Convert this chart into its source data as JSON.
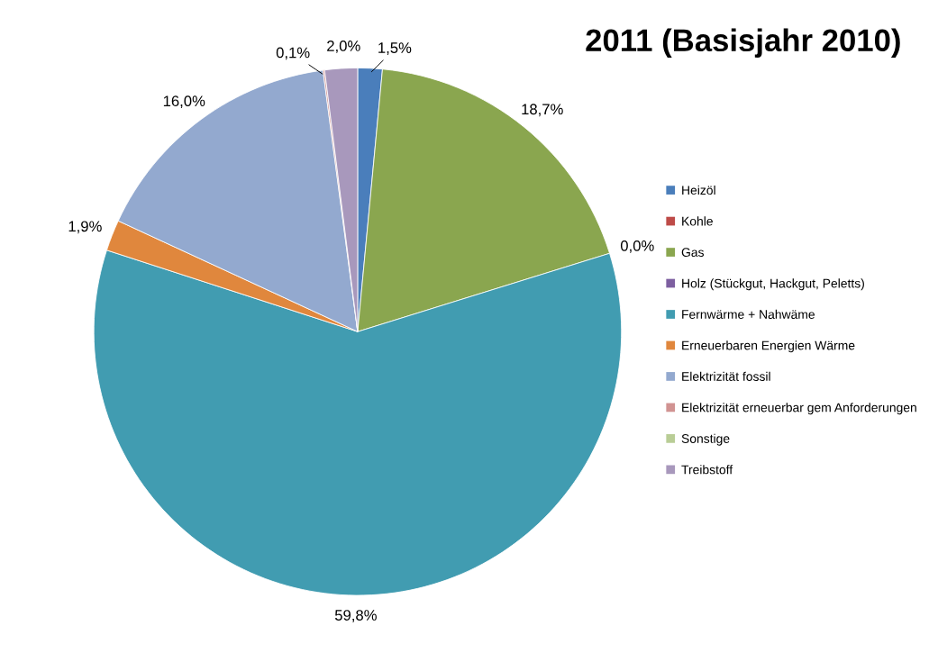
{
  "chart_data": {
    "type": "pie",
    "title": "2011 (Basisjahr 2010)",
    "categories": [
      "Heizöl",
      "Kohle",
      "Gas",
      "Holz (Stückgut, Hackgut, Peletts)",
      "Fernwärme + Nahwäme",
      "Erneuerbaren Energien Wärme",
      "Elektrizität fossil",
      "Elektrizität erneuerbar gem Anforderungen",
      "Sonstige",
      "Treibstoff"
    ],
    "values": [
      1.5,
      0.0,
      18.7,
      0.0,
      59.8,
      1.9,
      16.0,
      0.1,
      0.0,
      2.0
    ],
    "value_labels": [
      "1,5%",
      null,
      "18,7%",
      "0,0%",
      "59,8%",
      "1,9%",
      "16,0%",
      "0,1%",
      null,
      "2,0%"
    ],
    "colors": [
      "#4a7ebb",
      "#be4b48",
      "#8aa64f",
      "#7d5fa0",
      "#419cb1",
      "#e0873d",
      "#93a9cf",
      "#d19392",
      "#b9cd96",
      "#a898bc"
    ],
    "legend": "right"
  }
}
